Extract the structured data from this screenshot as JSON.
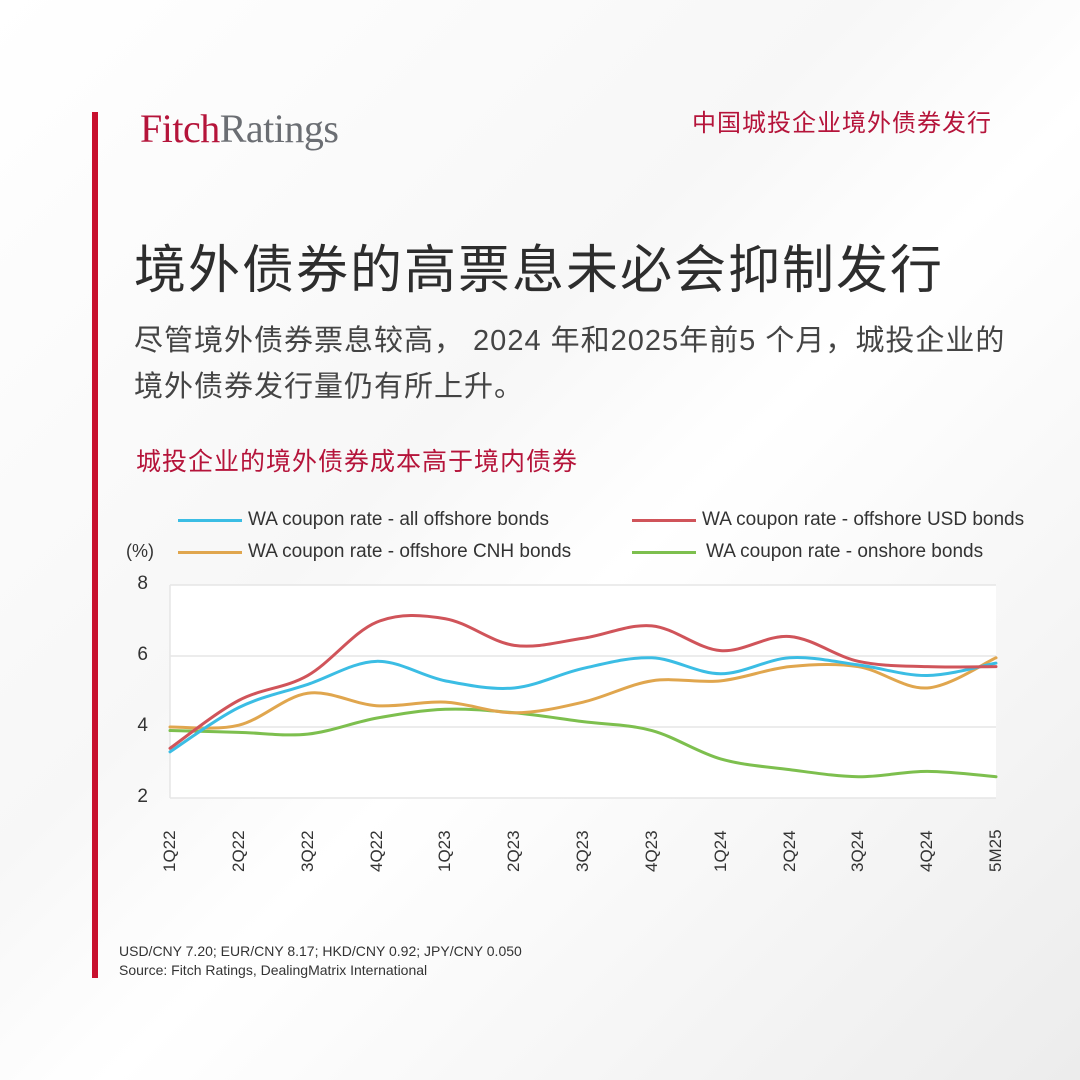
{
  "header": {
    "logo_part1": "Fitch",
    "logo_part2": "Ratings",
    "tag": "中国城投企业境外债券发行"
  },
  "title": "境外债券的高票息未必会抑制发行",
  "subtitle": "尽管境外债券票息较高， 2024 年和2025年前5 个月，城投企业的境外债券发行量仍有所上升。",
  "chart_title": "城投企业的境外债券成本高于境内债券",
  "colors": {
    "accent": "#c8102e",
    "logo_red": "#b5143a",
    "logo_grey": "#6b6e73"
  },
  "chart_data": {
    "type": "line",
    "title": "城投企业的境外债券成本高于境内债券",
    "xlabel": "",
    "ylabel": "(%)",
    "ylim": [
      2,
      8
    ],
    "yticks": [
      2,
      4,
      6,
      8
    ],
    "grid": true,
    "legend_position": "top",
    "categories": [
      "1Q22",
      "2Q22",
      "3Q22",
      "4Q22",
      "1Q23",
      "2Q23",
      "3Q23",
      "4Q23",
      "1Q24",
      "2Q24",
      "3Q24",
      "4Q24",
      "5M25"
    ],
    "series": [
      {
        "name": "WA coupon rate - all offshore bonds",
        "color": "#3bbde4",
        "values": [
          3.3,
          4.55,
          5.2,
          5.85,
          5.3,
          5.1,
          5.65,
          5.95,
          5.5,
          5.95,
          5.75,
          5.45,
          5.8
        ]
      },
      {
        "name": "WA coupon rate - offshore USD bonds",
        "color": "#d0545a",
        "values": [
          3.4,
          4.75,
          5.45,
          6.95,
          7.05,
          6.3,
          6.5,
          6.85,
          6.15,
          6.55,
          5.85,
          5.7,
          5.7
        ]
      },
      {
        "name": "WA coupon rate - offshore CNH bonds",
        "color": "#e0a64e",
        "values": [
          4.0,
          4.05,
          4.95,
          4.6,
          4.7,
          4.4,
          4.7,
          5.3,
          5.3,
          5.7,
          5.7,
          5.1,
          5.95
        ]
      },
      {
        "name": "WA coupon rate - onshore bonds",
        "color": "#7dbf4e",
        "values": [
          3.9,
          3.85,
          3.8,
          4.25,
          4.5,
          4.4,
          4.15,
          3.9,
          3.1,
          2.8,
          2.6,
          2.75,
          2.6
        ]
      }
    ]
  },
  "footnote": {
    "fx": "USD/CNY 7.20; EUR/CNY 8.17; HKD/CNY 0.92; JPY/CNY 0.050",
    "source": "Source: Fitch Ratings, DealingMatrix International"
  }
}
